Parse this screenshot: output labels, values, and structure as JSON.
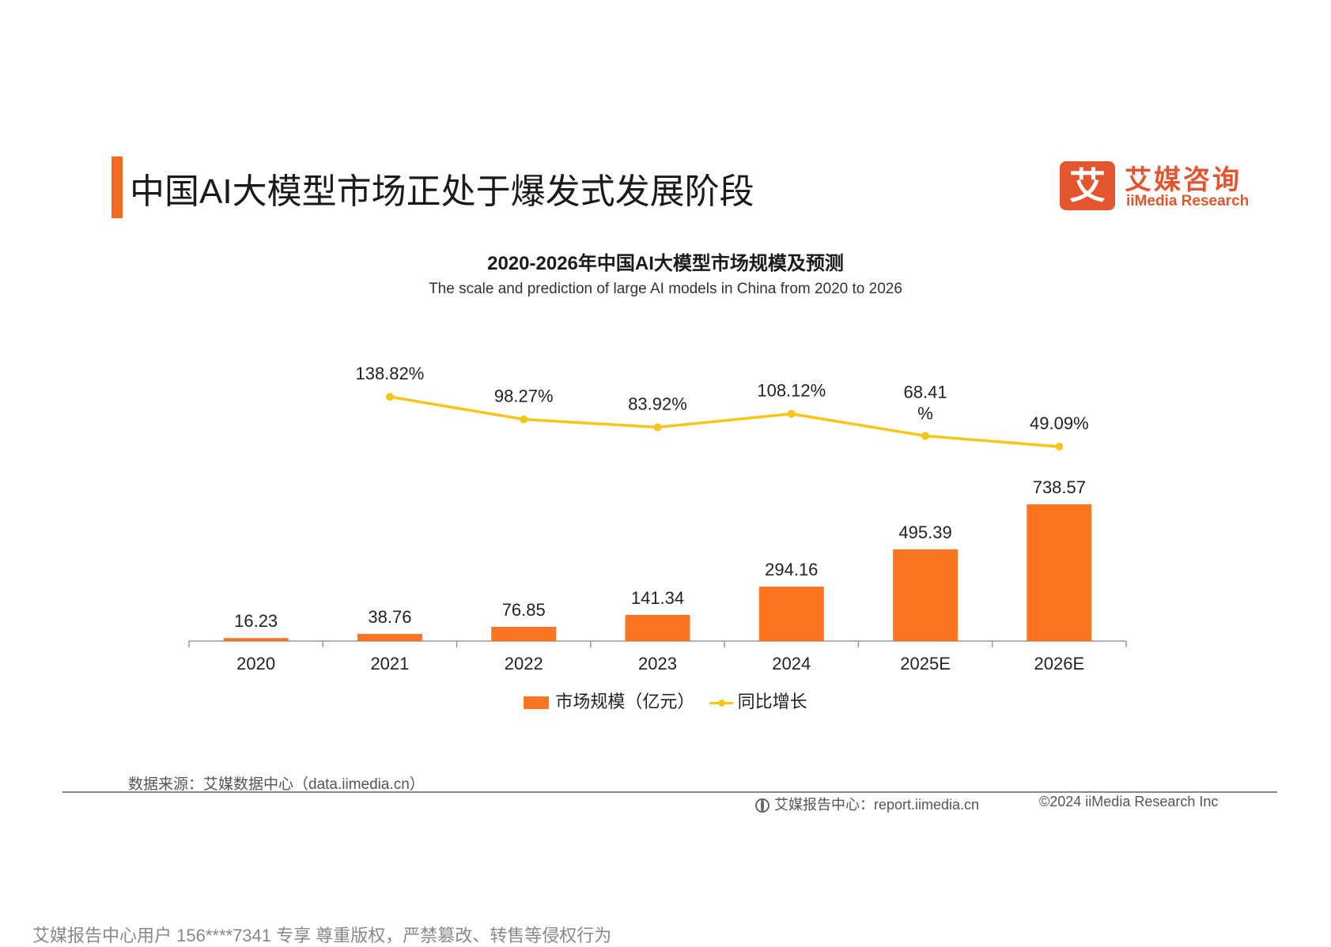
{
  "header": {
    "title": "中国AI大模型市场正处于爆发式发展阶段",
    "accent_color": "#f26a1f"
  },
  "logo": {
    "mark": "艾",
    "name_cn": "艾媒咨询",
    "name_en": "iiMedia Research",
    "color": "#e2552e"
  },
  "chart_data": {
    "type": "bar",
    "title": "2020-2026年中国AI大模型市场规模及预测",
    "subtitle": "The scale and prediction of large AI models in China from 2020 to 2026",
    "categories": [
      "2020",
      "2021",
      "2022",
      "2023",
      "2024",
      "2025E",
      "2026E"
    ],
    "series": [
      {
        "name": "市场规模（亿元）",
        "type": "bar",
        "color": "#fd7520",
        "values": [
          16.23,
          38.76,
          76.85,
          141.34,
          294.16,
          495.39,
          738.57
        ],
        "labels": [
          "16.23",
          "38.76",
          "76.85",
          "141.34",
          "294.16",
          "495.39",
          "738.57"
        ]
      },
      {
        "name": "同比增长",
        "type": "line",
        "color": "#f5c518",
        "values": [
          null,
          138.82,
          98.27,
          83.92,
          108.12,
          68.41,
          49.09
        ],
        "labels": [
          "",
          "138.82%",
          "98.27%",
          "83.92%",
          "108.12%",
          "68.41\n%",
          "49.09%"
        ]
      }
    ],
    "legend_position": "bottom",
    "grid": false
  },
  "footer": {
    "source": "数据来源：艾媒数据中心（data.iimedia.cn）",
    "report_center": "艾媒报告中心：report.iimedia.cn",
    "copyright": "©2024  iiMedia Research  Inc"
  },
  "watermark": "艾媒报告中心用户 156****7341 专享 尊重版权，严禁篡改、转售等侵权行为"
}
